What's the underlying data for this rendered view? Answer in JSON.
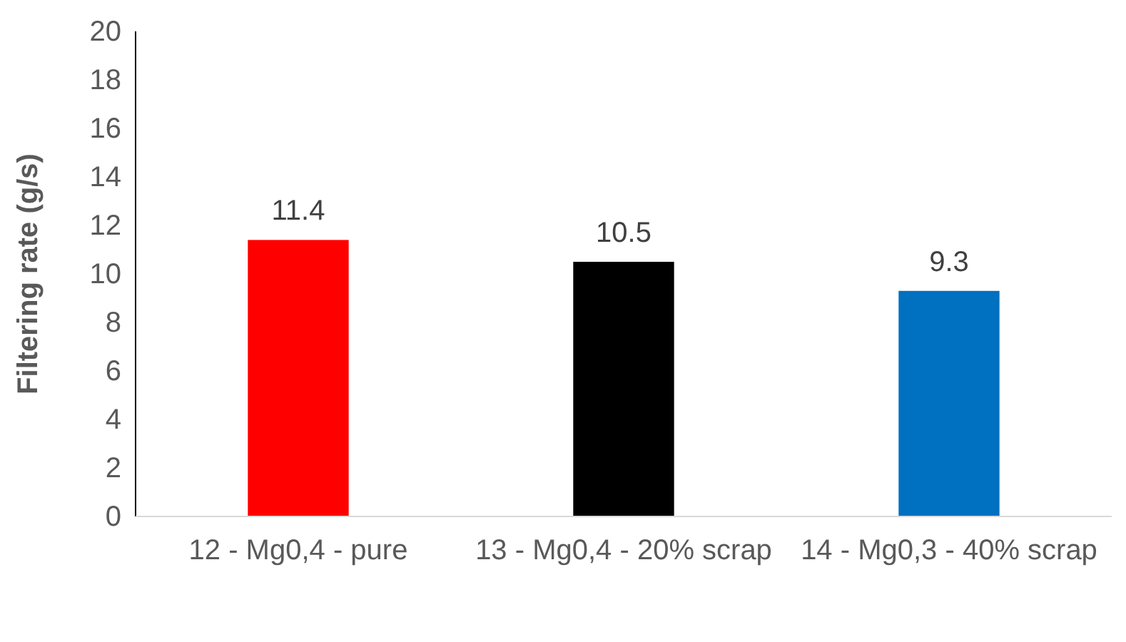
{
  "chart_data": {
    "type": "bar",
    "ylabel": "Filtering rate (g/s)",
    "categories": [
      "12 - Mg0,4 - pure",
      "13 - Mg0,4 - 20% scrap",
      "14 - Mg0,3 - 40% scrap"
    ],
    "values": [
      11.4,
      10.5,
      9.3
    ],
    "colors": [
      "#ff0000",
      "#000000",
      "#0070c0"
    ],
    "ylim": [
      0,
      20
    ],
    "yticks": [
      0,
      2,
      4,
      6,
      8,
      10,
      12,
      14,
      16,
      18,
      20
    ],
    "grid": false,
    "data_labels": true
  }
}
